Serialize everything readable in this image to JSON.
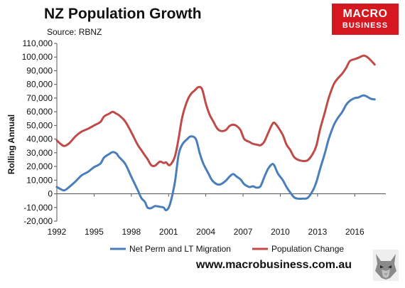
{
  "header": {
    "title": "NZ Population Growth",
    "source": "Source: RBNZ"
  },
  "logo": {
    "line1": "MACRO",
    "line2": "BUSINESS"
  },
  "footer": {
    "url": "www.macrobusiness.com.au"
  },
  "colors": {
    "migration": "#4a7ebb",
    "population": "#be4b48",
    "brand": "#d5171f"
  },
  "chart_data": {
    "type": "line",
    "title": "NZ Population Growth",
    "ylabel": "Rolling Annual",
    "xlabel": "",
    "ylim": [
      -20000,
      110000
    ],
    "xlim": [
      1992,
      2018.5
    ],
    "grid": false,
    "legend": "bottom",
    "y_ticks": [
      {
        "value": 110000,
        "label": "110,000"
      },
      {
        "value": 100000,
        "label": "100,000"
      },
      {
        "value": 90000,
        "label": "90,000"
      },
      {
        "value": 80000,
        "label": "80,000"
      },
      {
        "value": 70000,
        "label": "70,000"
      },
      {
        "value": 60000,
        "label": "60,000"
      },
      {
        "value": 50000,
        "label": "50,000"
      },
      {
        "value": 40000,
        "label": "40,000"
      },
      {
        "value": 30000,
        "label": "30,000"
      },
      {
        "value": 20000,
        "label": "20,000"
      },
      {
        "value": 10000,
        "label": "10,000"
      },
      {
        "value": 0,
        "label": "0"
      },
      {
        "value": -10000,
        "label": "-10,000"
      },
      {
        "value": -20000,
        "label": "-20,000"
      }
    ],
    "x_ticks": [
      {
        "value": 1992,
        "label": "1992"
      },
      {
        "value": 1995,
        "label": "1995"
      },
      {
        "value": 1998,
        "label": "1998"
      },
      {
        "value": 2001,
        "label": "2001"
      },
      {
        "value": 2004,
        "label": "2004"
      },
      {
        "value": 2007,
        "label": "2007"
      },
      {
        "value": 2010,
        "label": "2010"
      },
      {
        "value": 2013,
        "label": "2013"
      },
      {
        "value": 2016,
        "label": "2016"
      }
    ],
    "series": [
      {
        "name": "Net Perm and LT Migration",
        "color": "#4a7ebb",
        "points": [
          [
            1992.0,
            5000
          ],
          [
            1992.3,
            3500
          ],
          [
            1992.6,
            2500
          ],
          [
            1993.0,
            5000
          ],
          [
            1993.5,
            9000
          ],
          [
            1994.0,
            13500
          ],
          [
            1994.5,
            16000
          ],
          [
            1995.0,
            19500
          ],
          [
            1995.5,
            22000
          ],
          [
            1995.8,
            26500
          ],
          [
            1996.2,
            29000
          ],
          [
            1996.5,
            30500
          ],
          [
            1996.8,
            29500
          ],
          [
            1997.0,
            27000
          ],
          [
            1997.5,
            22000
          ],
          [
            1998.0,
            12500
          ],
          [
            1998.5,
            3000
          ],
          [
            1998.8,
            -3000
          ],
          [
            1999.1,
            -6000
          ],
          [
            1999.3,
            -10000
          ],
          [
            1999.6,
            -10500
          ],
          [
            1999.9,
            -9000
          ],
          [
            2000.3,
            -9500
          ],
          [
            2000.6,
            -10000
          ],
          [
            2000.8,
            -12000
          ],
          [
            2001.1,
            -8000
          ],
          [
            2001.5,
            8000
          ],
          [
            2001.8,
            28000
          ],
          [
            2002.1,
            36000
          ],
          [
            2002.5,
            40000
          ],
          [
            2002.8,
            42000
          ],
          [
            2003.2,
            40000
          ],
          [
            2003.5,
            30000
          ],
          [
            2003.8,
            22000
          ],
          [
            2004.2,
            15000
          ],
          [
            2004.5,
            10000
          ],
          [
            2004.9,
            7000
          ],
          [
            2005.2,
            7000
          ],
          [
            2005.6,
            9500
          ],
          [
            2005.9,
            12500
          ],
          [
            2006.2,
            14500
          ],
          [
            2006.5,
            12500
          ],
          [
            2006.8,
            10500
          ],
          [
            2007.1,
            7000
          ],
          [
            2007.5,
            5000
          ],
          [
            2007.8,
            5500
          ],
          [
            2008.1,
            4500
          ],
          [
            2008.4,
            5500
          ],
          [
            2008.7,
            12000
          ],
          [
            2009.0,
            18000
          ],
          [
            2009.3,
            21500
          ],
          [
            2009.5,
            21000
          ],
          [
            2009.8,
            15000
          ],
          [
            2010.2,
            10000
          ],
          [
            2010.5,
            5000
          ],
          [
            2010.8,
            1000
          ],
          [
            2011.1,
            -2500
          ],
          [
            2011.4,
            -3500
          ],
          [
            2011.8,
            -3500
          ],
          [
            2012.2,
            -3000
          ],
          [
            2012.6,
            2000
          ],
          [
            2012.9,
            8500
          ],
          [
            2013.2,
            18000
          ],
          [
            2013.6,
            30000
          ],
          [
            2013.9,
            40000
          ],
          [
            2014.3,
            50000
          ],
          [
            2014.6,
            55000
          ],
          [
            2015.0,
            60000
          ],
          [
            2015.3,
            65000
          ],
          [
            2015.6,
            68000
          ],
          [
            2016.0,
            70000
          ],
          [
            2016.3,
            70500
          ],
          [
            2016.7,
            72000
          ],
          [
            2017.0,
            71000
          ],
          [
            2017.3,
            69500
          ],
          [
            2017.6,
            69000
          ]
        ]
      },
      {
        "name": "Population Change",
        "color": "#be4b48",
        "points": [
          [
            1992.0,
            39000
          ],
          [
            1992.3,
            36500
          ],
          [
            1992.6,
            35000
          ],
          [
            1993.0,
            37000
          ],
          [
            1993.5,
            42000
          ],
          [
            1994.0,
            45500
          ],
          [
            1994.5,
            47500
          ],
          [
            1995.0,
            50000
          ],
          [
            1995.5,
            52500
          ],
          [
            1995.8,
            56500
          ],
          [
            1996.2,
            58500
          ],
          [
            1996.5,
            60000
          ],
          [
            1996.8,
            58500
          ],
          [
            1997.0,
            57500
          ],
          [
            1997.5,
            53000
          ],
          [
            1998.0,
            45000
          ],
          [
            1998.5,
            36000
          ],
          [
            1998.8,
            32000
          ],
          [
            1999.1,
            28000
          ],
          [
            1999.3,
            25500
          ],
          [
            1999.6,
            21000
          ],
          [
            1999.9,
            20500
          ],
          [
            2000.3,
            23500
          ],
          [
            2000.6,
            22500
          ],
          [
            2000.8,
            23000
          ],
          [
            2001.1,
            21000
          ],
          [
            2001.5,
            27000
          ],
          [
            2001.8,
            40000
          ],
          [
            2002.1,
            56000
          ],
          [
            2002.5,
            68000
          ],
          [
            2002.8,
            73000
          ],
          [
            2003.1,
            75500
          ],
          [
            2003.4,
            78000
          ],
          [
            2003.7,
            76500
          ],
          [
            2004.0,
            66000
          ],
          [
            2004.3,
            58000
          ],
          [
            2004.6,
            53000
          ],
          [
            2004.9,
            48000
          ],
          [
            2005.2,
            46000
          ],
          [
            2005.6,
            46500
          ],
          [
            2005.9,
            49500
          ],
          [
            2006.2,
            50500
          ],
          [
            2006.5,
            49500
          ],
          [
            2006.8,
            46500
          ],
          [
            2007.1,
            40000
          ],
          [
            2007.5,
            38000
          ],
          [
            2007.8,
            36500
          ],
          [
            2008.1,
            36000
          ],
          [
            2008.4,
            35500
          ],
          [
            2008.7,
            38000
          ],
          [
            2009.0,
            44000
          ],
          [
            2009.3,
            50000
          ],
          [
            2009.5,
            52000
          ],
          [
            2009.8,
            49000
          ],
          [
            2010.2,
            43000
          ],
          [
            2010.5,
            36000
          ],
          [
            2010.8,
            32000
          ],
          [
            2011.1,
            27000
          ],
          [
            2011.4,
            25000
          ],
          [
            2011.8,
            24000
          ],
          [
            2012.2,
            24500
          ],
          [
            2012.6,
            29000
          ],
          [
            2012.9,
            35000
          ],
          [
            2013.2,
            47000
          ],
          [
            2013.6,
            60000
          ],
          [
            2013.9,
            70000
          ],
          [
            2014.3,
            80000
          ],
          [
            2014.6,
            84000
          ],
          [
            2015.0,
            88000
          ],
          [
            2015.3,
            92000
          ],
          [
            2015.6,
            97000
          ],
          [
            2016.0,
            98500
          ],
          [
            2016.3,
            99500
          ],
          [
            2016.7,
            101000
          ],
          [
            2017.0,
            100000
          ],
          [
            2017.3,
            97500
          ],
          [
            2017.6,
            94500
          ]
        ]
      }
    ]
  }
}
